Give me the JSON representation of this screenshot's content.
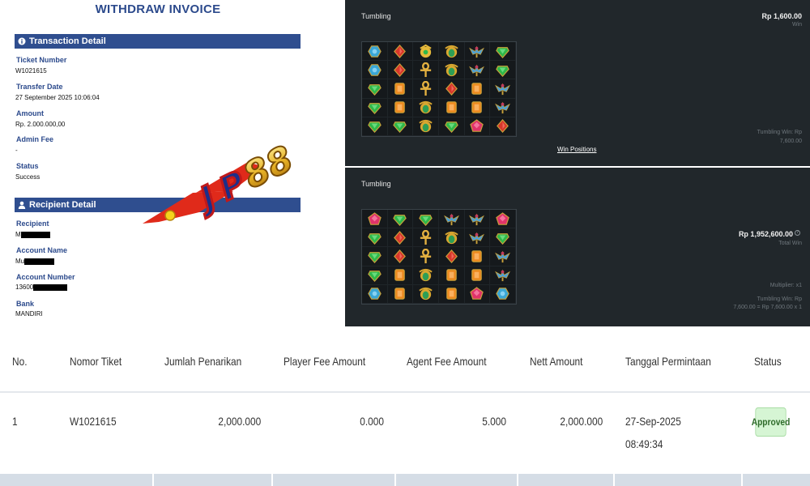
{
  "invoice": {
    "title": "WITHDRAW INVOICE",
    "transaction_section": "Transaction Detail",
    "recipient_section": "Recipient Detail",
    "fields": {
      "ticket_number_label": "Ticket Number",
      "ticket_number": "W1021615",
      "transfer_date_label": "Transfer Date",
      "transfer_date": "27 September 2025 10:06:04",
      "amount_label": "Amount",
      "amount": "Rp. 2.000.000,00",
      "admin_fee_label": "Admin Fee",
      "admin_fee": "-",
      "status_label": "Status",
      "status": "Success",
      "recipient_label": "Recipient",
      "recipient_prefix": "M",
      "account_name_label": "Account Name",
      "account_name_prefix": "Mu",
      "account_number_label": "Account Number",
      "account_number_prefix": "13600",
      "bank_label": "Bank",
      "bank": "MANDIRI"
    },
    "watermark": "JP88"
  },
  "game_screens": [
    {
      "title": "Tumbling",
      "amount": "Rp 1,600.00",
      "amount_sub": "Win",
      "tumbling_win_line1": "Tumbling Win: Rp",
      "tumbling_win_line2": "7,600.00",
      "link": "Win Positions",
      "grid": [
        [
          "blue",
          "red",
          "gold",
          "scarab",
          "bird",
          "green"
        ],
        [
          "blue",
          "red",
          "ankh",
          "scarab",
          "bird",
          "green"
        ],
        [
          "green",
          "orange",
          "ankh",
          "red",
          "orange",
          "bird"
        ],
        [
          "green",
          "orange",
          "scarab",
          "orange",
          "orange",
          "bird"
        ],
        [
          "green",
          "green",
          "scarab",
          "green",
          "pink",
          "red"
        ]
      ]
    },
    {
      "title": "Tumbling",
      "amount": "Rp 1,952,600.00",
      "amount_sub": "Total Win",
      "multiplier": "Multiplier: x1",
      "tumbling_win_line1": "Tumbling Win: Rp",
      "tumbling_win_line2": "7,600.00 = Rp 7,600.00 x 1",
      "grid": [
        [
          "pink",
          "green",
          "green",
          "bird",
          "bird",
          "pink"
        ],
        [
          "green",
          "red",
          "ankh",
          "scarab",
          "bird",
          "green"
        ],
        [
          "green",
          "red",
          "ankh",
          "red",
          "orange",
          "bird"
        ],
        [
          "green",
          "orange",
          "scarab",
          "orange",
          "orange",
          "bird"
        ],
        [
          "blue",
          "orange",
          "scarab",
          "orange",
          "pink",
          "blue"
        ]
      ]
    }
  ],
  "colors": {
    "green": "#2fb84a",
    "red": "#d8372b",
    "blue": "#3aa7d6",
    "orange": "#ee8a1f",
    "pink": "#e0336a",
    "gold": "#e6b93a",
    "scarab": "#2e9e55",
    "bird": "#4aa0d8",
    "ankh": "#e3b040"
  },
  "table": {
    "headers": [
      "No.",
      "Nomor Tiket",
      "Jumlah Penarikan",
      "Player Fee Amount",
      "Agent Fee Amount",
      "Nett Amount",
      "Tanggal Permintaan",
      "Status"
    ],
    "row": {
      "no": "1",
      "ticket": "W1021615",
      "amount": "2,000.000",
      "player_fee": "0.000",
      "agent_fee": "5.000",
      "nett": "2,000.000",
      "date": "27-Sep-2025",
      "time": "08:49:34",
      "status": "Approved"
    }
  }
}
